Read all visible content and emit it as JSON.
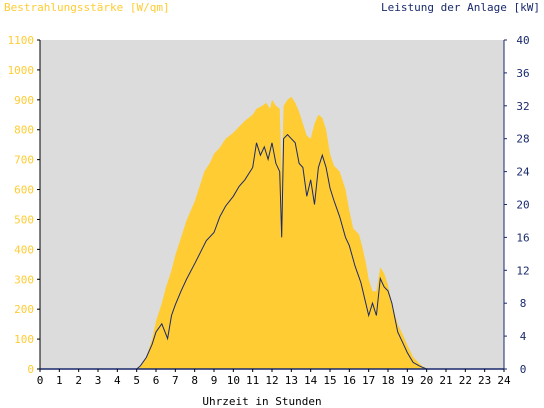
{
  "chart_data": {
    "type": "area",
    "title": "",
    "left_axis_label": "Bestrahlungsstärke [W/qm]",
    "right_axis_label": "Leistung der Anlage [kW]",
    "xlabel": "Uhrzeit in Stunden",
    "x_ticks": [
      "0",
      "1",
      "2",
      "3",
      "4",
      "5",
      "6",
      "7",
      "8",
      "9",
      "10",
      "11",
      "12",
      "13",
      "14",
      "15",
      "16",
      "17",
      "18",
      "19",
      "20",
      "21",
      "22",
      "23",
      "24"
    ],
    "xlim": [
      0,
      24
    ],
    "y_left_ticks": [
      "0",
      "100",
      "200",
      "300",
      "400",
      "500",
      "600",
      "700",
      "800",
      "900",
      "1000",
      "1100"
    ],
    "ylim_left": [
      0,
      1100
    ],
    "y_right_ticks": [
      "0",
      "4",
      "8",
      "12",
      "16",
      "20",
      "24",
      "28",
      "32",
      "36",
      "40"
    ],
    "ylim_right": [
      0,
      40
    ],
    "grid": false,
    "colors": {
      "irradiance_fill": "#ffcc33",
      "power_line": "#1a2a6c",
      "plot_background": "#dcdcdc",
      "left_axis_text": "#ffcc33",
      "right_axis_text": "#1a2a6c"
    },
    "series": [
      {
        "axis": "left",
        "x": [
          0,
          5.0,
          5.2,
          5.5,
          5.8,
          6.0,
          6.3,
          6.5,
          6.8,
          7.0,
          7.3,
          7.6,
          8.0,
          8.3,
          8.5,
          8.8,
          9.0,
          9.3,
          9.6,
          10.0,
          10.3,
          10.6,
          11.0,
          11.2,
          11.5,
          11.7,
          11.9,
          12.0,
          12.2,
          12.4,
          12.5,
          12.6,
          12.8,
          13.0,
          13.2,
          13.4,
          13.6,
          13.8,
          14.0,
          14.2,
          14.4,
          14.6,
          14.8,
          15.0,
          15.2,
          15.5,
          15.8,
          16.0,
          16.2,
          16.5,
          16.7,
          16.9,
          17.0,
          17.2,
          17.4,
          17.6,
          17.8,
          18.0,
          18.2,
          18.5,
          18.8,
          19.0,
          19.3,
          19.6,
          19.8,
          20.0,
          20.2,
          20.5,
          24
        ],
        "values": [
          0,
          0,
          10,
          40,
          100,
          160,
          220,
          270,
          330,
          380,
          440,
          500,
          560,
          620,
          660,
          690,
          720,
          740,
          770,
          790,
          810,
          830,
          850,
          870,
          880,
          890,
          870,
          900,
          880,
          870,
          640,
          880,
          900,
          910,
          890,
          860,
          820,
          780,
          770,
          820,
          850,
          840,
          800,
          720,
          680,
          660,
          600,
          530,
          470,
          450,
          400,
          340,
          300,
          260,
          260,
          340,
          320,
          280,
          220,
          150,
          110,
          80,
          40,
          20,
          8,
          3,
          0,
          0,
          0
        ]
      },
      {
        "axis": "right",
        "x": [
          0,
          5.0,
          5.2,
          5.5,
          5.8,
          6.0,
          6.3,
          6.6,
          6.8,
          7.0,
          7.3,
          7.6,
          8.0,
          8.3,
          8.6,
          9.0,
          9.3,
          9.6,
          10.0,
          10.3,
          10.6,
          11.0,
          11.2,
          11.4,
          11.6,
          11.8,
          12.0,
          12.2,
          12.4,
          12.5,
          12.6,
          12.8,
          13.0,
          13.2,
          13.4,
          13.6,
          13.8,
          14.0,
          14.2,
          14.4,
          14.6,
          14.8,
          15.0,
          15.2,
          15.5,
          15.8,
          16.0,
          16.3,
          16.6,
          16.8,
          17.0,
          17.2,
          17.4,
          17.6,
          17.8,
          18.0,
          18.2,
          18.5,
          18.8,
          19.0,
          19.3,
          19.6,
          19.8,
          20.0,
          20.2,
          24
        ],
        "values": [
          0,
          0,
          0.4,
          1.4,
          3.0,
          4.5,
          5.5,
          3.7,
          6.5,
          7.8,
          9.5,
          11.0,
          12.8,
          14.2,
          15.6,
          16.6,
          18.5,
          19.8,
          21.0,
          22.2,
          23.0,
          24.5,
          27.5,
          26.0,
          27.0,
          25.5,
          27.5,
          25.0,
          24.0,
          16.0,
          28.0,
          28.5,
          28.0,
          27.5,
          25.0,
          24.5,
          21.0,
          23.0,
          20.0,
          24.5,
          26.0,
          24.5,
          22.0,
          20.5,
          18.5,
          16.0,
          15.0,
          12.5,
          10.5,
          8.5,
          6.5,
          8.0,
          6.5,
          11.0,
          10.0,
          9.5,
          8.0,
          4.5,
          3.0,
          2.0,
          0.8,
          0.4,
          0.2,
          0,
          0,
          0
        ]
      }
    ]
  }
}
